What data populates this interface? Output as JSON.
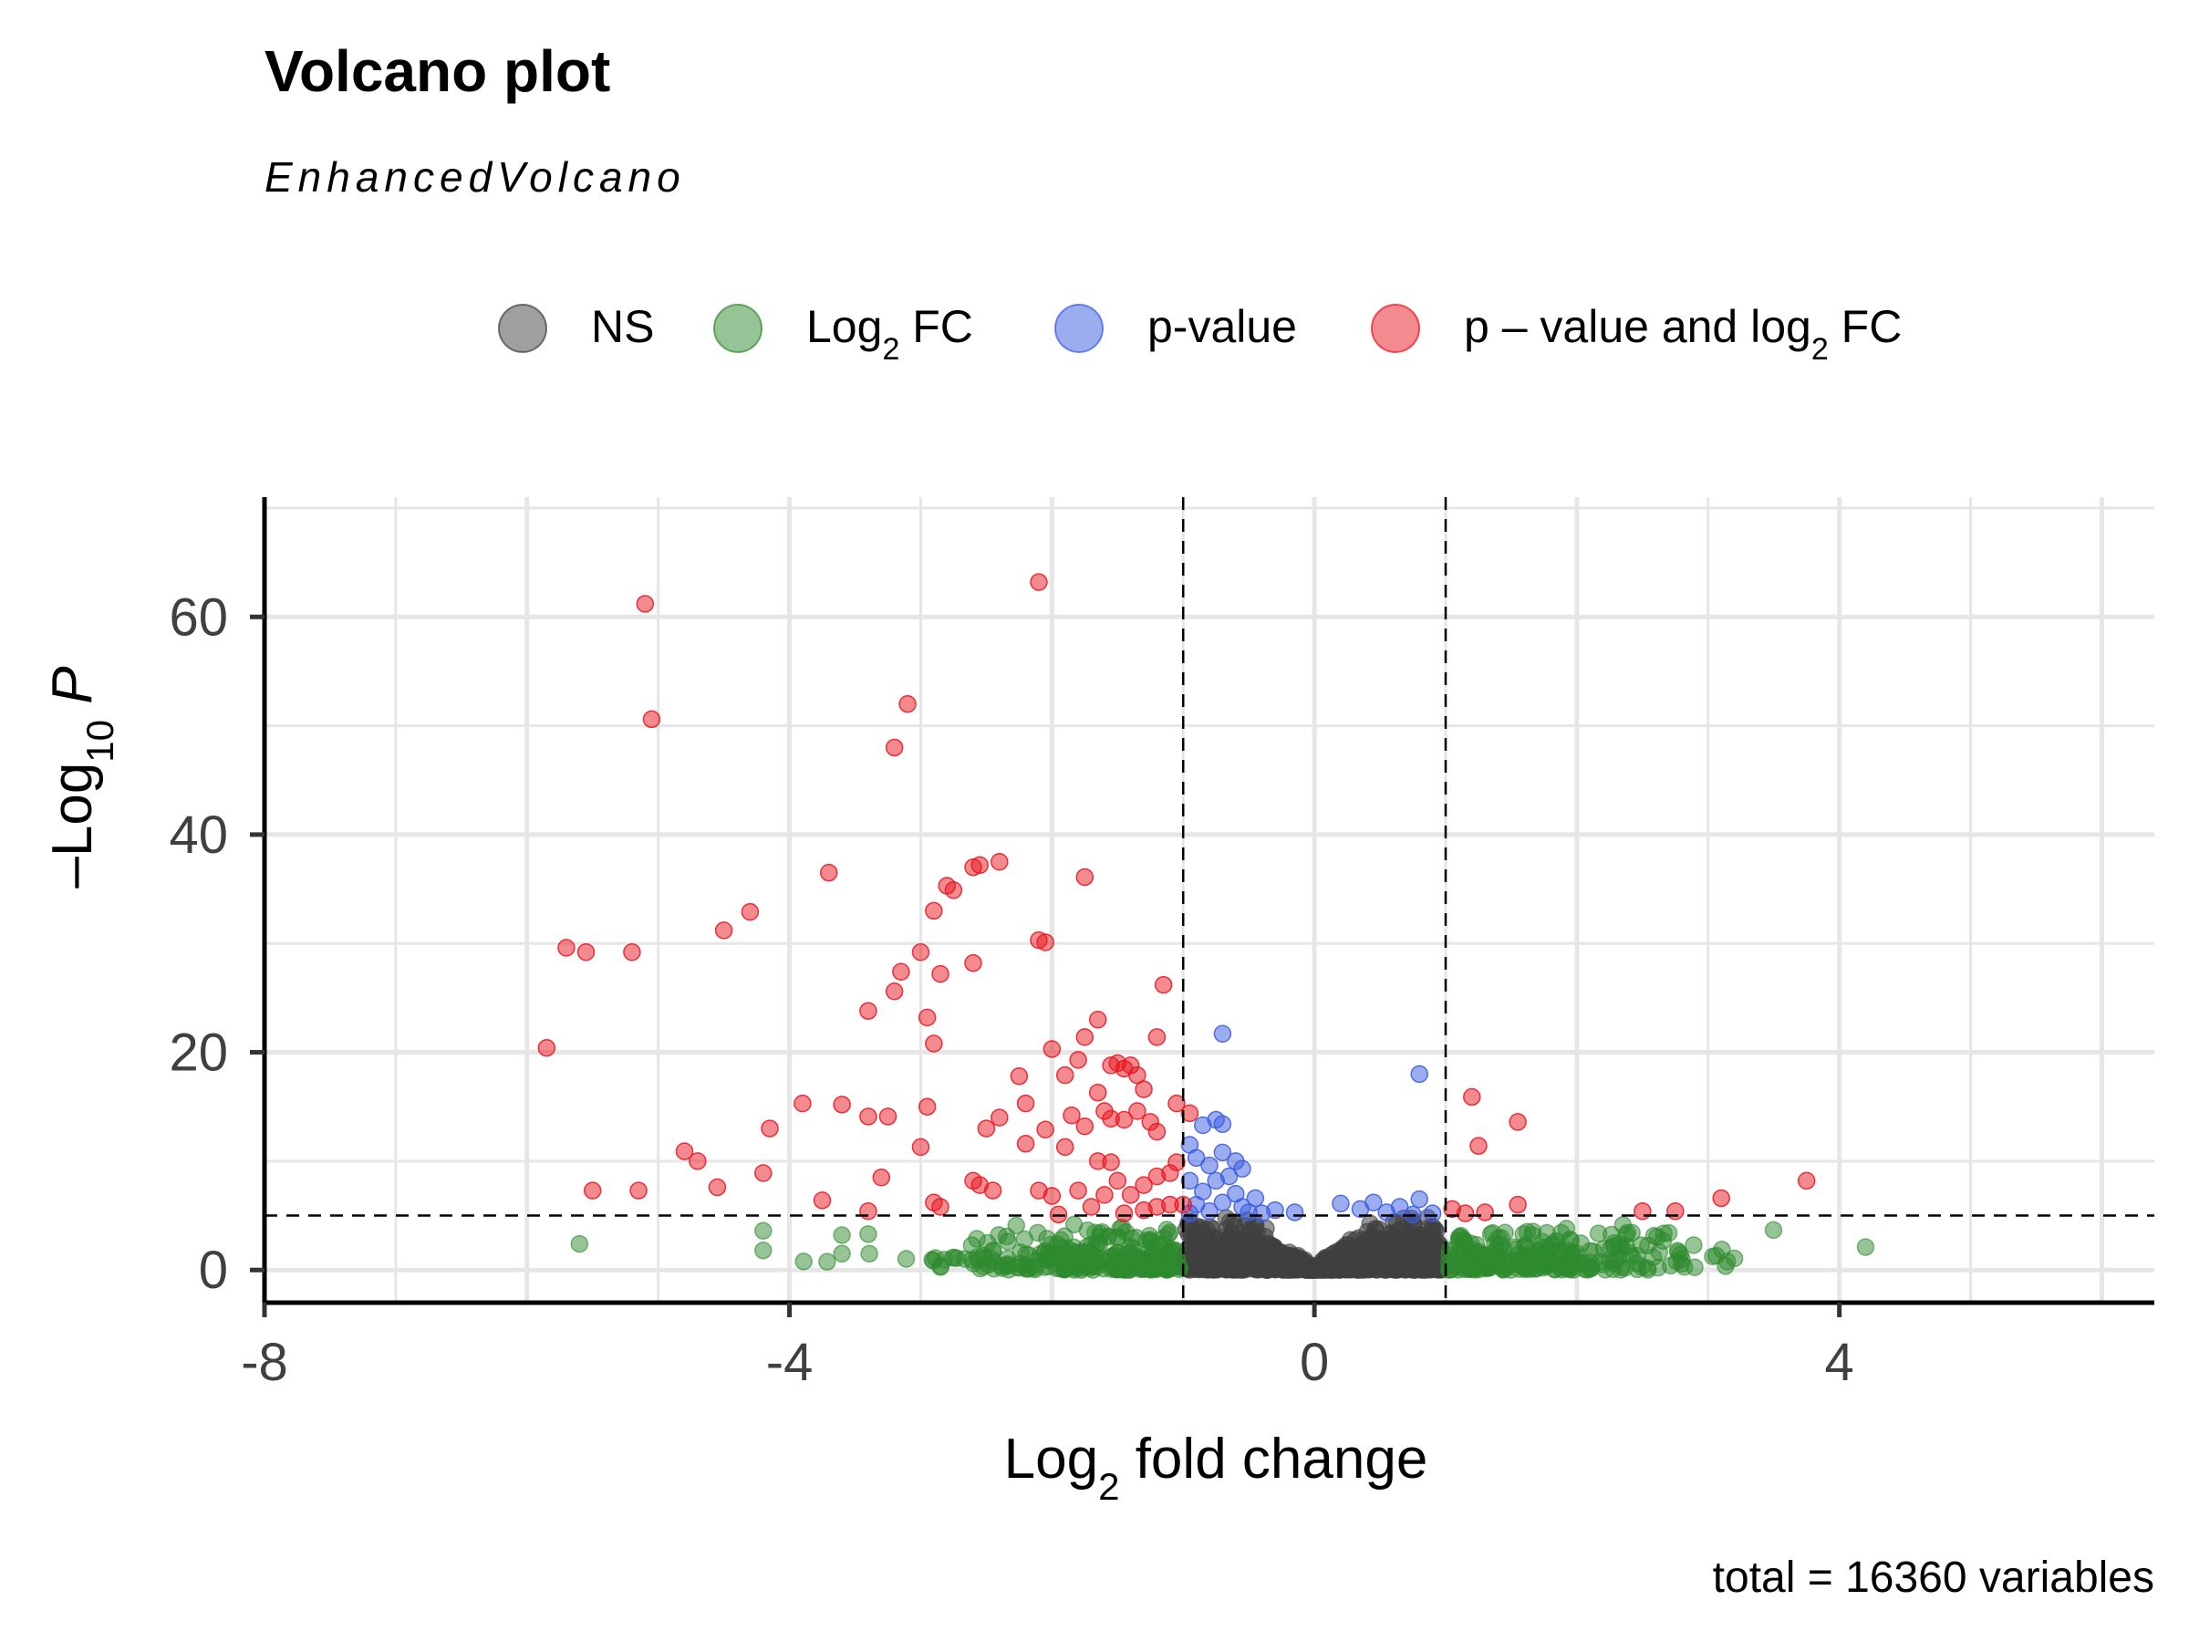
{
  "chart_data": {
    "type": "scatter",
    "title": "Volcano plot",
    "subtitle": "EnhancedVolcano",
    "xlabel": {
      "main": "Log",
      "sub": "2",
      "rest": " fold change"
    },
    "ylabel": {
      "main": "–Log",
      "sub": "10",
      "rest": " P"
    },
    "caption": "total = 16360 variables",
    "xlim": [
      -8,
      6.4
    ],
    "ylim": [
      -3,
      71
    ],
    "x_ticks": [
      -8,
      -4,
      0,
      4
    ],
    "x_tick_labels": [
      "-8",
      "-4",
      "0",
      "4"
    ],
    "y_ticks": [
      0,
      20,
      40,
      60
    ],
    "y_tick_labels": [
      "0",
      "20",
      "40",
      "60"
    ],
    "grid": true,
    "legend_position": "top",
    "thresholds": {
      "log2fc": 1,
      "neg_log10_p": 5
    },
    "colors": {
      "NS": "#404040",
      "Log2FC": "#2d8a2d",
      "pvalue": "#3a5be0",
      "both": "#e8151f"
    },
    "legend": [
      {
        "key": "NS",
        "main": "NS",
        "sub": "",
        "rest": ""
      },
      {
        "key": "Log2FC",
        "main": "Log",
        "sub": "2",
        "rest": " FC"
      },
      {
        "key": "pvalue",
        "main": "p-value",
        "sub": "",
        "rest": ""
      },
      {
        "key": "both",
        "main": "p – value and log",
        "sub": "2",
        "rest": " FC"
      }
    ],
    "series": [
      {
        "key": "both",
        "points": [
          [
            -2.1,
            63.2
          ],
          [
            -5.1,
            61.2
          ],
          [
            -5.05,
            50.6
          ],
          [
            -3.1,
            52.0
          ],
          [
            -3.2,
            48.0
          ],
          [
            -3.7,
            36.5
          ],
          [
            -2.55,
            37.2
          ],
          [
            -2.4,
            37.5
          ],
          [
            -1.75,
            36.1
          ],
          [
            -2.6,
            37.0
          ],
          [
            -2.8,
            35.3
          ],
          [
            -2.75,
            34.9
          ],
          [
            -2.9,
            33.0
          ],
          [
            -4.3,
            32.9
          ],
          [
            -4.5,
            31.2
          ],
          [
            -2.1,
            30.3
          ],
          [
            -2.05,
            30.1
          ],
          [
            -5.7,
            29.6
          ],
          [
            -5.55,
            29.2
          ],
          [
            -5.2,
            29.2
          ],
          [
            -3.0,
            29.2
          ],
          [
            -2.6,
            28.2
          ],
          [
            -3.15,
            27.4
          ],
          [
            -2.85,
            27.2
          ],
          [
            -1.15,
            26.2
          ],
          [
            -3.2,
            25.6
          ],
          [
            -3.4,
            23.8
          ],
          [
            -2.95,
            23.2
          ],
          [
            -1.65,
            23.0
          ],
          [
            -1.75,
            21.4
          ],
          [
            -1.2,
            21.4
          ],
          [
            -2.9,
            20.8
          ],
          [
            -5.85,
            20.4
          ],
          [
            -2.0,
            20.3
          ],
          [
            -1.8,
            19.3
          ],
          [
            -1.5,
            19.0
          ],
          [
            -1.4,
            18.8
          ],
          [
            -1.45,
            18.5
          ],
          [
            -1.55,
            18.8
          ],
          [
            -1.9,
            17.9
          ],
          [
            -1.35,
            17.9
          ],
          [
            -1.3,
            16.6
          ],
          [
            -2.25,
            17.8
          ],
          [
            -1.65,
            16.3
          ],
          [
            -2.2,
            15.3
          ],
          [
            -1.05,
            15.3
          ],
          [
            -1.6,
            14.6
          ],
          [
            -1.35,
            14.6
          ],
          [
            -3.9,
            15.3
          ],
          [
            -3.6,
            15.2
          ],
          [
            -2.95,
            15.0
          ],
          [
            -1.85,
            14.2
          ],
          [
            -0.95,
            14.4
          ],
          [
            -2.4,
            14.0
          ],
          [
            -3.4,
            14.1
          ],
          [
            -3.25,
            14.1
          ],
          [
            -1.55,
            13.9
          ],
          [
            -1.45,
            13.8
          ],
          [
            -1.25,
            13.6
          ],
          [
            -1.75,
            13.2
          ],
          [
            -2.05,
            12.9
          ],
          [
            -2.5,
            13.0
          ],
          [
            -1.2,
            12.7
          ],
          [
            -4.15,
            13.0
          ],
          [
            -3.0,
            11.3
          ],
          [
            -2.2,
            11.6
          ],
          [
            -1.9,
            11.3
          ],
          [
            -1.65,
            10.0
          ],
          [
            -1.55,
            9.9
          ],
          [
            -4.8,
            10.9
          ],
          [
            -4.7,
            10.0
          ],
          [
            -1.05,
            9.9
          ],
          [
            -1.1,
            8.9
          ],
          [
            -4.2,
            8.9
          ],
          [
            -3.3,
            8.5
          ],
          [
            -2.6,
            8.2
          ],
          [
            -2.55,
            7.8
          ],
          [
            -1.2,
            8.6
          ],
          [
            -1.3,
            7.8
          ],
          [
            -1.5,
            8.2
          ],
          [
            -2.1,
            7.3
          ],
          [
            -2.45,
            7.3
          ],
          [
            -1.8,
            7.3
          ],
          [
            -5.5,
            7.3
          ],
          [
            -5.15,
            7.3
          ],
          [
            -4.55,
            7.6
          ],
          [
            -3.75,
            6.4
          ],
          [
            -2.0,
            6.8
          ],
          [
            -1.6,
            6.9
          ],
          [
            -1.4,
            6.9
          ],
          [
            -1.1,
            6.0
          ],
          [
            -2.9,
            6.2
          ],
          [
            -2.85,
            5.8
          ],
          [
            -1.7,
            5.8
          ],
          [
            -1.95,
            5.1
          ],
          [
            -1.3,
            5.5
          ],
          [
            -1.2,
            5.8
          ],
          [
            -1.0,
            6.0
          ],
          [
            -3.4,
            5.4
          ],
          [
            -1.45,
            5.2
          ],
          [
            1.2,
            15.9
          ],
          [
            1.55,
            13.6
          ],
          [
            1.25,
            11.4
          ],
          [
            3.75,
            8.2
          ],
          [
            3.1,
            6.6
          ],
          [
            1.55,
            6.0
          ],
          [
            2.5,
            5.4
          ],
          [
            2.75,
            5.4
          ],
          [
            1.05,
            5.6
          ],
          [
            1.3,
            5.3
          ],
          [
            1.15,
            5.2
          ]
        ]
      },
      {
        "key": "pvalue",
        "points": [
          [
            -0.7,
            21.7
          ],
          [
            0.8,
            18.0
          ],
          [
            -0.75,
            13.8
          ],
          [
            -0.85,
            13.3
          ],
          [
            -0.7,
            13.4
          ],
          [
            -0.95,
            11.5
          ],
          [
            -0.7,
            10.8
          ],
          [
            -0.9,
            10.3
          ],
          [
            -0.6,
            10.0
          ],
          [
            -0.8,
            9.6
          ],
          [
            -0.55,
            9.3
          ],
          [
            -0.65,
            8.6
          ],
          [
            -0.75,
            8.2
          ],
          [
            -0.95,
            8.2
          ],
          [
            -0.85,
            7.2
          ],
          [
            -0.6,
            7.0
          ],
          [
            -0.45,
            6.6
          ],
          [
            -0.7,
            6.2
          ],
          [
            -0.9,
            6.0
          ],
          [
            -0.55,
            5.8
          ],
          [
            -0.3,
            5.5
          ],
          [
            -0.15,
            5.3
          ],
          [
            -0.5,
            5.3
          ],
          [
            0.2,
            6.1
          ],
          [
            0.45,
            6.2
          ],
          [
            0.65,
            5.8
          ],
          [
            0.8,
            6.5
          ],
          [
            0.35,
            5.6
          ],
          [
            0.55,
            5.3
          ],
          [
            0.75,
            5.1
          ],
          [
            -0.8,
            5.4
          ],
          [
            -0.95,
            5.2
          ],
          [
            0.9,
            5.2
          ],
          [
            -0.4,
            5.2
          ]
        ]
      }
    ]
  }
}
